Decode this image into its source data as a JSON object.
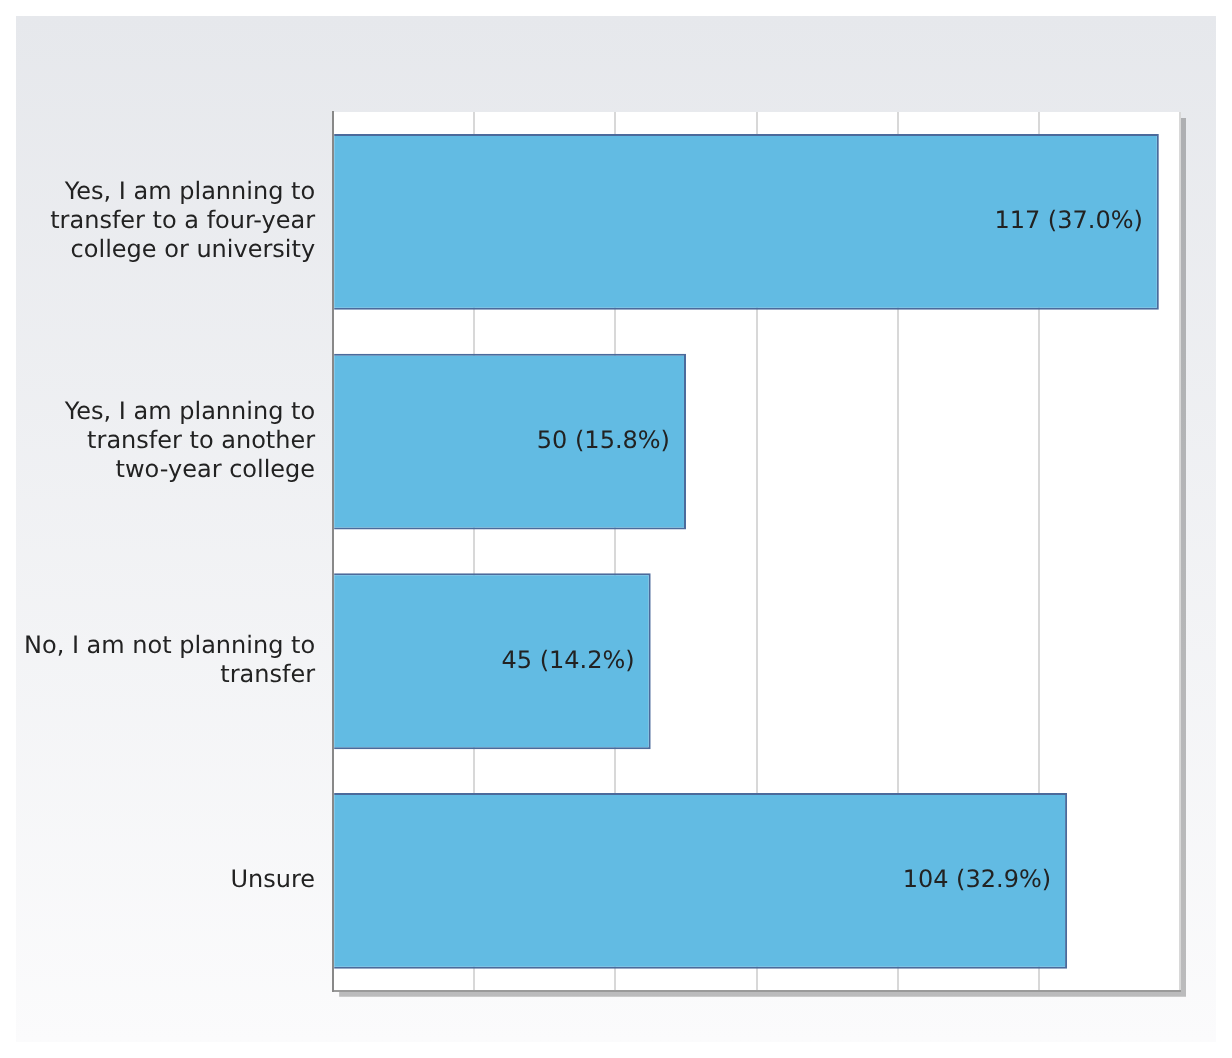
{
  "chart_data": {
    "type": "bar",
    "orientation": "horizontal",
    "categories": [
      "Yes, I am planning to transfer to a four-year college or university",
      "Yes, I am planning to transfer to another two-year college",
      "No, I am not planning to transfer",
      "Unsure"
    ],
    "values": [
      117,
      50,
      45,
      104
    ],
    "value_labels": [
      "117 (37.0%)",
      "50 (15.8%)",
      "45 (14.2%)",
      "104 (32.9%)"
    ],
    "color": "#62bbe3",
    "xlim": [
      0,
      120
    ],
    "xticks": [
      {
        "value": 0,
        "label": null
      },
      {
        "value": 20,
        "label": null
      },
      {
        "value": 40,
        "label": null
      },
      {
        "value": 60,
        "label": null
      },
      {
        "value": 80,
        "label": null
      },
      {
        "value": 100,
        "label": null
      },
      {
        "value": 120,
        "label": null
      }
    ],
    "grid": "x"
  }
}
